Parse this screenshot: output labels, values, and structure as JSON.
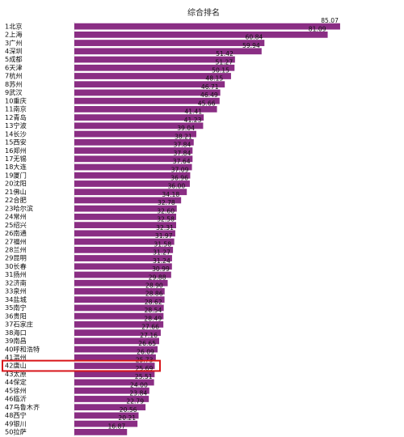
{
  "chart_data": {
    "type": "bar",
    "orientation": "horizontal",
    "title": "综合排名",
    "categories": [
      "1北京",
      "2上海",
      "3广州",
      "4深圳",
      "5成都",
      "6天津",
      "7杭州",
      "8苏州",
      "9武汉",
      "10重庆",
      "11南京",
      "12青岛",
      "13宁波",
      "14长沙",
      "15西安",
      "16郑州",
      "17无锡",
      "18大连",
      "19厦门",
      "20沈阳",
      "21佛山",
      "22合肥",
      "23哈尔滨",
      "24常州",
      "25绍兴",
      "26南通",
      "27福州",
      "28兰州",
      "29昆明",
      "30长春",
      "31扬州",
      "32济南",
      "33泉州",
      "34盐城",
      "35南宁",
      "36贵阳",
      "37石家庄",
      "38海口",
      "39南昌",
      "40呼和浩特",
      "41温州",
      "42唐山",
      "43太原",
      "44保定",
      "45徐州",
      "46临沂",
      "47乌鲁木齐",
      "48西宁",
      "49银川",
      "50拉萨"
    ],
    "values": [
      85.07,
      81.09,
      60.84,
      59.94,
      51.42,
      51.27,
      50.15,
      48.15,
      46.71,
      46.49,
      45.66,
      41.41,
      41.23,
      39.04,
      38.21,
      37.84,
      37.84,
      37.64,
      37.09,
      36.96,
      36.0,
      34.18,
      32.78,
      32.6,
      32.58,
      32.31,
      31.97,
      31.58,
      31.27,
      31.24,
      30.99,
      29.88,
      28.9,
      28.86,
      28.62,
      28.54,
      28.49,
      27.66,
      27.16,
      26.65,
      26.09,
      25.73,
      25.69,
      25.51,
      24.0,
      23.84,
      22.79,
      20.56,
      20.21,
      16.87
    ],
    "value_labels": [
      "85.07",
      "81.09",
      "60.84",
      "59.94",
      "51.42",
      "51.27",
      "50.15",
      "48.15",
      "46.71",
      "46.49",
      "45.66",
      "41.41",
      "41.23",
      "39.04",
      "38.21",
      "37.84",
      "37.84",
      "37.64",
      "37.09",
      "36.96",
      "36.00",
      "34.18",
      "32.78",
      "32.60",
      "32.58",
      "32.31",
      "31.97",
      "31.58",
      "31.27",
      "31.24",
      "30.99",
      "29.88",
      "28.90",
      "28.86",
      "28.62",
      "28.54",
      "28.49",
      "27.66",
      "27.16",
      "26.65",
      "26.09",
      "25.73",
      "25.69",
      "25.51",
      "24.00",
      "23.84",
      "22.79",
      "20.56",
      "20.21",
      "16.87"
    ],
    "highlight_category": "42唐山",
    "xlim": [
      0,
      90
    ],
    "grid": false,
    "colors": {
      "bar": "#8a2e84",
      "highlight_box": "#d8161b",
      "text": "#111111"
    }
  }
}
